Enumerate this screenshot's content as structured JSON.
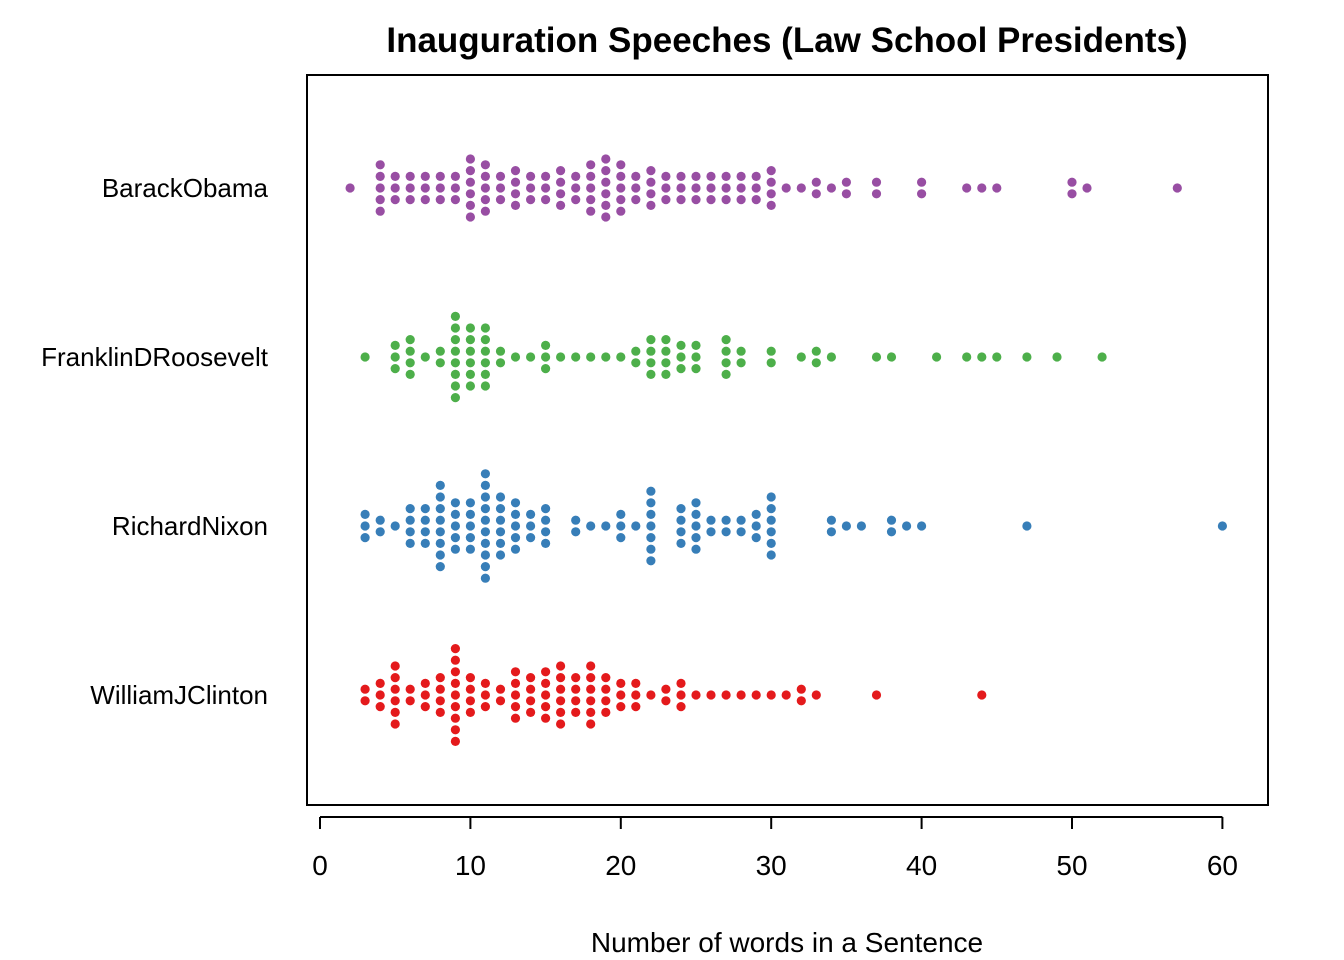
{
  "chart_data": {
    "type": "scatter",
    "subtype": "beeswarm",
    "title": "Inauguration Speeches (Law School Presidents)",
    "xlabel": "Number of words in a Sentence",
    "ylabel": "",
    "xlim": [
      -1,
      63
    ],
    "xticks": [
      0,
      10,
      20,
      30,
      40,
      50,
      60
    ],
    "grid": false,
    "legend": "none",
    "series": [
      {
        "name": "BarackObama",
        "color": "#984EA3",
        "counts": [
          [
            2,
            1
          ],
          [
            4,
            5
          ],
          [
            5,
            3
          ],
          [
            6,
            3
          ],
          [
            7,
            3
          ],
          [
            8,
            3
          ],
          [
            9,
            3
          ],
          [
            10,
            6
          ],
          [
            11,
            5
          ],
          [
            12,
            3
          ],
          [
            13,
            4
          ],
          [
            14,
            3
          ],
          [
            15,
            3
          ],
          [
            16,
            4
          ],
          [
            17,
            3
          ],
          [
            18,
            5
          ],
          [
            19,
            6
          ],
          [
            20,
            5
          ],
          [
            21,
            3
          ],
          [
            22,
            4
          ],
          [
            23,
            3
          ],
          [
            24,
            3
          ],
          [
            25,
            3
          ],
          [
            26,
            3
          ],
          [
            27,
            3
          ],
          [
            28,
            3
          ],
          [
            29,
            3
          ],
          [
            30,
            4
          ],
          [
            31,
            1
          ],
          [
            32,
            1
          ],
          [
            33,
            2
          ],
          [
            34,
            1
          ],
          [
            35,
            2
          ],
          [
            37,
            2
          ],
          [
            40,
            2
          ],
          [
            43,
            1
          ],
          [
            44,
            1
          ],
          [
            45,
            1
          ],
          [
            50,
            2
          ],
          [
            51,
            1
          ],
          [
            57,
            1
          ]
        ]
      },
      {
        "name": "FranklinDRoosevelt",
        "color": "#4DAF4A",
        "counts": [
          [
            3,
            1
          ],
          [
            5,
            3
          ],
          [
            6,
            4
          ],
          [
            7,
            1
          ],
          [
            8,
            2
          ],
          [
            9,
            8
          ],
          [
            10,
            6
          ],
          [
            11,
            6
          ],
          [
            12,
            2
          ],
          [
            13,
            1
          ],
          [
            14,
            1
          ],
          [
            15,
            3
          ],
          [
            16,
            1
          ],
          [
            17,
            1
          ],
          [
            18,
            1
          ],
          [
            19,
            1
          ],
          [
            20,
            1
          ],
          [
            21,
            2
          ],
          [
            22,
            4
          ],
          [
            23,
            4
          ],
          [
            24,
            3
          ],
          [
            25,
            3
          ],
          [
            27,
            4
          ],
          [
            28,
            2
          ],
          [
            30,
            2
          ],
          [
            32,
            1
          ],
          [
            33,
            2
          ],
          [
            34,
            1
          ],
          [
            37,
            1
          ],
          [
            38,
            1
          ],
          [
            41,
            1
          ],
          [
            43,
            1
          ],
          [
            44,
            1
          ],
          [
            45,
            1
          ],
          [
            47,
            1
          ],
          [
            49,
            1
          ],
          [
            52,
            1
          ]
        ]
      },
      {
        "name": "RichardNixon",
        "color": "#377EB8",
        "counts": [
          [
            3,
            3
          ],
          [
            4,
            2
          ],
          [
            5,
            1
          ],
          [
            6,
            4
          ],
          [
            7,
            4
          ],
          [
            8,
            8
          ],
          [
            9,
            5
          ],
          [
            10,
            5
          ],
          [
            11,
            10
          ],
          [
            12,
            6
          ],
          [
            13,
            5
          ],
          [
            14,
            3
          ],
          [
            15,
            4
          ],
          [
            17,
            2
          ],
          [
            18,
            1
          ],
          [
            19,
            1
          ],
          [
            20,
            3
          ],
          [
            21,
            1
          ],
          [
            22,
            7
          ],
          [
            24,
            4
          ],
          [
            25,
            5
          ],
          [
            26,
            2
          ],
          [
            27,
            2
          ],
          [
            28,
            2
          ],
          [
            29,
            3
          ],
          [
            30,
            6
          ],
          [
            34,
            2
          ],
          [
            35,
            1
          ],
          [
            36,
            1
          ],
          [
            38,
            2
          ],
          [
            39,
            1
          ],
          [
            40,
            1
          ],
          [
            47,
            1
          ],
          [
            60,
            1
          ]
        ]
      },
      {
        "name": "WilliamJClinton",
        "color": "#E41A1C",
        "counts": [
          [
            3,
            2
          ],
          [
            4,
            3
          ],
          [
            5,
            6
          ],
          [
            6,
            2
          ],
          [
            7,
            3
          ],
          [
            8,
            4
          ],
          [
            9,
            9
          ],
          [
            10,
            4
          ],
          [
            11,
            3
          ],
          [
            12,
            2
          ],
          [
            13,
            5
          ],
          [
            14,
            4
          ],
          [
            15,
            5
          ],
          [
            16,
            6
          ],
          [
            17,
            4
          ],
          [
            18,
            6
          ],
          [
            19,
            4
          ],
          [
            20,
            3
          ],
          [
            21,
            3
          ],
          [
            22,
            1
          ],
          [
            23,
            2
          ],
          [
            24,
            3
          ],
          [
            25,
            1
          ],
          [
            26,
            1
          ],
          [
            27,
            1
          ],
          [
            28,
            1
          ],
          [
            29,
            1
          ],
          [
            30,
            1
          ],
          [
            31,
            1
          ],
          [
            32,
            2
          ],
          [
            33,
            1
          ],
          [
            37,
            1
          ],
          [
            44,
            1
          ]
        ]
      }
    ]
  }
}
